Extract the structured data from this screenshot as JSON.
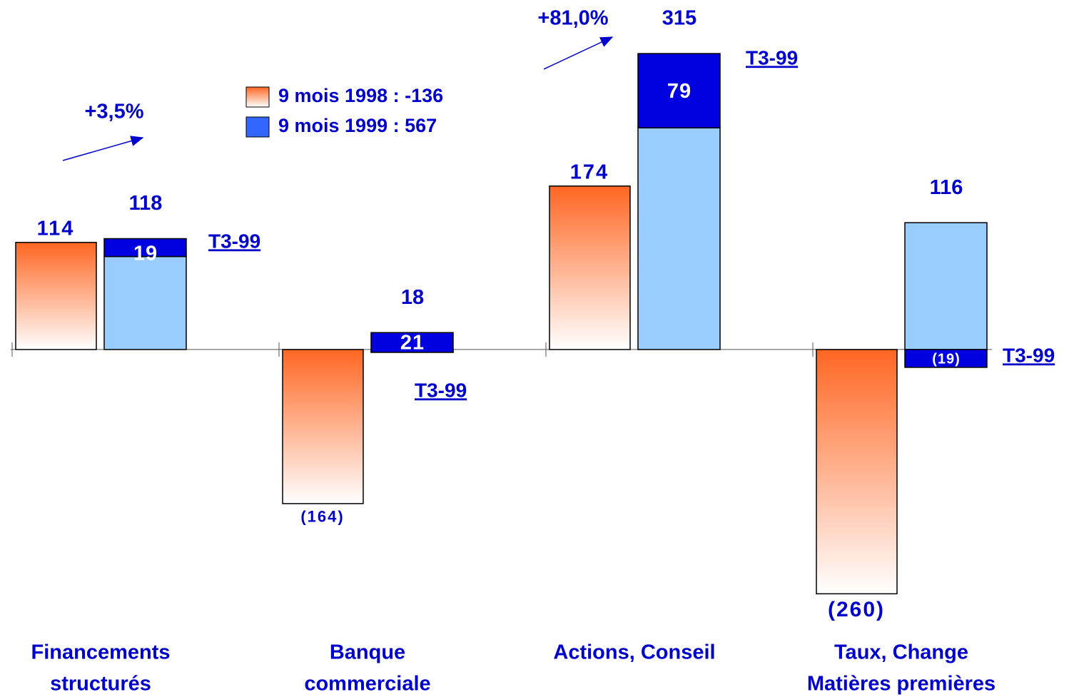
{
  "chart_data": {
    "type": "bar",
    "categories": [
      [
        "Financements",
        "structurés"
      ],
      [
        "Banque",
        "commerciale"
      ],
      [
        "Actions, Conseil"
      ],
      [
        "Taux, Change",
        "Matières premières"
      ]
    ],
    "ylim": [
      -300,
      350
    ],
    "legend": [
      {
        "label": "9 mois 1998 : -136",
        "color": "#ff6622"
      },
      {
        "label": "9 mois 1999 : 567",
        "color": "#3366ff"
      }
    ],
    "series": [
      {
        "color": "#ff6622",
        "values": [
          114,
          -164,
          174,
          -260
        ],
        "value_labels": [
          "114",
          "(164)",
          "174",
          "(260)"
        ]
      },
      {
        "color": "#99ccff",
        "values": [
          99,
          -3,
          236,
          135
        ]
      },
      {
        "name": "T3-99",
        "color": "#0000e0",
        "values": [
          19,
          21,
          79,
          -19
        ],
        "value_labels": [
          "19",
          "21",
          "79",
          "(19)"
        ]
      }
    ],
    "totals": [
      118,
      18,
      315,
      116
    ],
    "annotations": [
      "+3,5%",
      "+81,0%"
    ]
  }
}
